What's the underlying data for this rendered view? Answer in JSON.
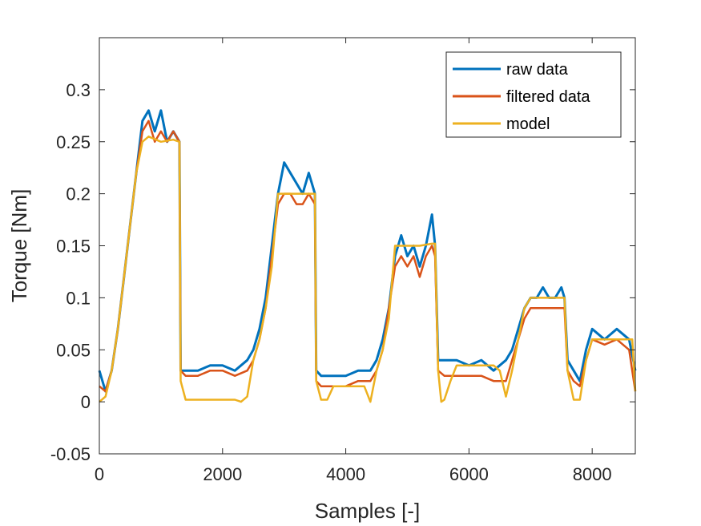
{
  "chart_data": {
    "type": "line",
    "xlabel": "Samples [-]",
    "ylabel": "Torque [Nm]",
    "xlim": [
      0,
      8700
    ],
    "ylim": [
      -0.05,
      0.35
    ],
    "xticks": [
      0,
      2000,
      4000,
      6000,
      8000
    ],
    "xtick_labels": [
      "0",
      "2000",
      "4000",
      "6000",
      "8000"
    ],
    "yticks": [
      -0.05,
      0,
      0.05,
      0.1,
      0.15,
      0.2,
      0.25,
      0.3
    ],
    "ytick_labels": [
      "-0.05",
      "0",
      "0.05",
      "0.1",
      "0.15",
      "0.2",
      "0.25",
      "0.3"
    ],
    "grid": false,
    "legend_position": "top-right",
    "series": [
      {
        "name": "raw data",
        "color": "#0072BD",
        "x": [
          0,
          100,
          200,
          300,
          400,
          500,
          600,
          700,
          800,
          900,
          1000,
          1100,
          1200,
          1300,
          1320,
          1400,
          1600,
          1800,
          2000,
          2200,
          2400,
          2500,
          2600,
          2700,
          2800,
          2900,
          3000,
          3100,
          3200,
          3300,
          3400,
          3500,
          3520,
          3600,
          3800,
          4000,
          4200,
          4400,
          4500,
          4600,
          4700,
          4800,
          4900,
          5000,
          5100,
          5200,
          5300,
          5400,
          5450,
          5500,
          5600,
          5800,
          6000,
          6200,
          6400,
          6600,
          6700,
          6800,
          6900,
          7000,
          7100,
          7200,
          7300,
          7400,
          7500,
          7550,
          7600,
          7700,
          7800,
          7900,
          8000,
          8200,
          8400,
          8600,
          8700
        ],
        "y": [
          0.03,
          0.01,
          0.03,
          0.07,
          0.12,
          0.17,
          0.22,
          0.27,
          0.28,
          0.26,
          0.28,
          0.25,
          0.26,
          0.25,
          0.03,
          0.03,
          0.03,
          0.035,
          0.035,
          0.03,
          0.04,
          0.05,
          0.07,
          0.1,
          0.15,
          0.2,
          0.23,
          0.22,
          0.21,
          0.2,
          0.22,
          0.2,
          0.03,
          0.025,
          0.025,
          0.025,
          0.03,
          0.03,
          0.04,
          0.06,
          0.09,
          0.14,
          0.16,
          0.14,
          0.15,
          0.13,
          0.15,
          0.18,
          0.15,
          0.04,
          0.04,
          0.04,
          0.035,
          0.04,
          0.03,
          0.04,
          0.05,
          0.07,
          0.09,
          0.1,
          0.1,
          0.11,
          0.1,
          0.1,
          0.11,
          0.1,
          0.04,
          0.03,
          0.02,
          0.05,
          0.07,
          0.06,
          0.07,
          0.06,
          0.03
        ]
      },
      {
        "name": "filtered data",
        "color": "#D95319",
        "x": [
          0,
          100,
          200,
          300,
          400,
          500,
          600,
          700,
          800,
          900,
          1000,
          1100,
          1200,
          1300,
          1320,
          1400,
          1600,
          1800,
          2000,
          2200,
          2400,
          2500,
          2600,
          2700,
          2800,
          2900,
          3000,
          3100,
          3200,
          3300,
          3400,
          3500,
          3520,
          3600,
          3800,
          4000,
          4200,
          4400,
          4500,
          4600,
          4700,
          4800,
          4900,
          5000,
          5100,
          5200,
          5300,
          5400,
          5450,
          5500,
          5600,
          5800,
          6000,
          6200,
          6400,
          6600,
          6700,
          6800,
          6900,
          7000,
          7100,
          7200,
          7300,
          7400,
          7500,
          7550,
          7600,
          7700,
          7800,
          7900,
          8000,
          8200,
          8400,
          8600,
          8700
        ],
        "y": [
          0.015,
          0.01,
          0.03,
          0.07,
          0.12,
          0.17,
          0.22,
          0.26,
          0.27,
          0.25,
          0.26,
          0.25,
          0.26,
          0.25,
          0.03,
          0.025,
          0.025,
          0.03,
          0.03,
          0.025,
          0.03,
          0.04,
          0.06,
          0.09,
          0.14,
          0.19,
          0.2,
          0.2,
          0.19,
          0.19,
          0.2,
          0.19,
          0.02,
          0.015,
          0.015,
          0.015,
          0.02,
          0.02,
          0.03,
          0.05,
          0.09,
          0.13,
          0.14,
          0.13,
          0.14,
          0.12,
          0.14,
          0.15,
          0.14,
          0.03,
          0.025,
          0.025,
          0.025,
          0.025,
          0.02,
          0.02,
          0.04,
          0.06,
          0.08,
          0.09,
          0.09,
          0.09,
          0.09,
          0.09,
          0.09,
          0.09,
          0.03,
          0.02,
          0.015,
          0.04,
          0.06,
          0.055,
          0.06,
          0.05,
          0.01
        ]
      },
      {
        "name": "model",
        "color": "#EDB120",
        "x": [
          0,
          100,
          200,
          300,
          400,
          500,
          600,
          700,
          800,
          1000,
          1200,
          1300,
          1320,
          1400,
          1500,
          1700,
          2000,
          2200,
          2300,
          2400,
          2500,
          2600,
          2700,
          2800,
          2900,
          3000,
          3200,
          3400,
          3500,
          3520,
          3600,
          3700,
          3800,
          4000,
          4300,
          4400,
          4500,
          4600,
          4700,
          4800,
          5000,
          5200,
          5400,
          5450,
          5500,
          5550,
          5600,
          5700,
          5800,
          6000,
          6400,
          6500,
          6600,
          6700,
          6800,
          6900,
          7000,
          7200,
          7500,
          7550,
          7600,
          7700,
          7800,
          7900,
          8000,
          8400,
          8650,
          8700
        ],
        "y": [
          0.0,
          0.005,
          0.03,
          0.07,
          0.12,
          0.17,
          0.22,
          0.25,
          0.255,
          0.25,
          0.252,
          0.25,
          0.02,
          0.002,
          0.002,
          0.002,
          0.002,
          0.002,
          0.0,
          0.005,
          0.04,
          0.06,
          0.09,
          0.13,
          0.2,
          0.2,
          0.2,
          0.2,
          0.2,
          0.02,
          0.002,
          0.002,
          0.015,
          0.015,
          0.015,
          0.0,
          0.03,
          0.05,
          0.08,
          0.15,
          0.15,
          0.15,
          0.152,
          0.152,
          0.03,
          0.0,
          0.002,
          0.02,
          0.035,
          0.035,
          0.035,
          0.03,
          0.005,
          0.03,
          0.06,
          0.09,
          0.1,
          0.1,
          0.1,
          0.1,
          0.03,
          0.002,
          0.002,
          0.04,
          0.06,
          0.06,
          0.06,
          0.01
        ]
      }
    ]
  }
}
